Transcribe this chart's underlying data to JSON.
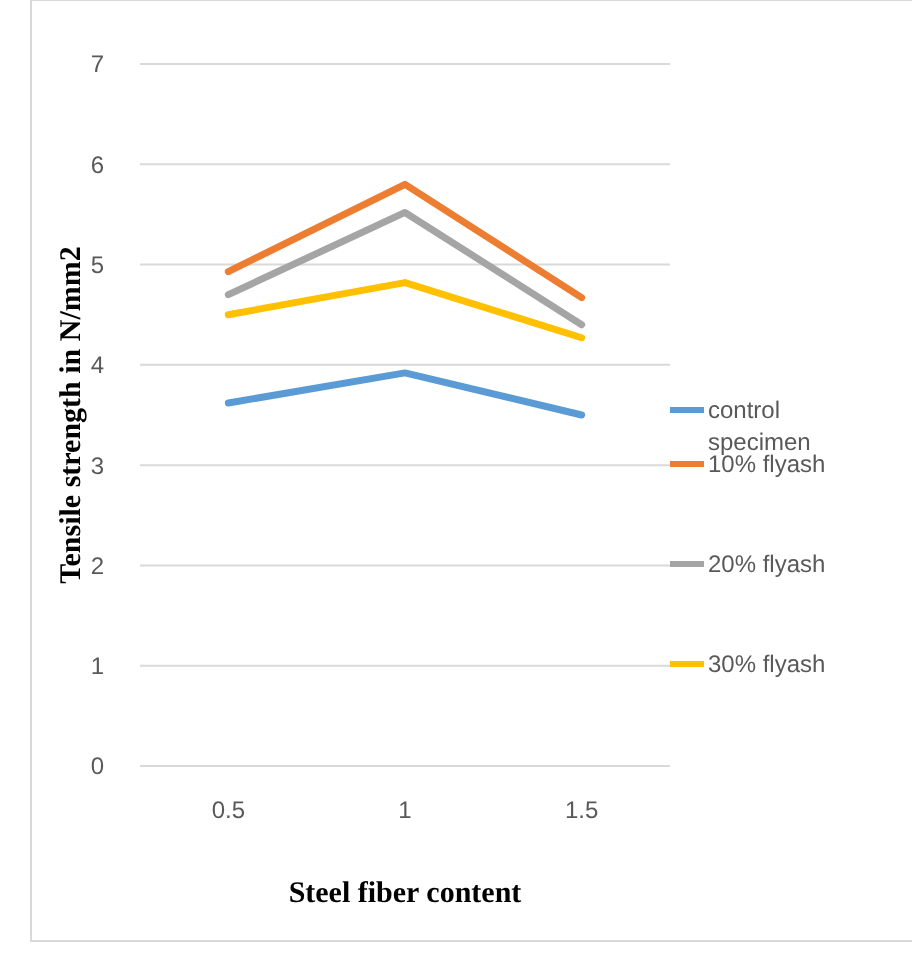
{
  "chart_data": {
    "type": "line",
    "xlabel": "Steel fiber content",
    "ylabel": "Tensile strength in N/mm2",
    "categories": [
      "0.5",
      "1",
      "1.5"
    ],
    "series": [
      {
        "name": "control specimen",
        "color": "#5b9bd5",
        "values": [
          3.62,
          3.92,
          3.5
        ]
      },
      {
        "name": "10% flyash",
        "color": "#ed7d31",
        "values": [
          4.93,
          5.8,
          4.67
        ]
      },
      {
        "name": "20% flyash",
        "color": "#a5a5a5",
        "values": [
          4.7,
          5.52,
          4.4
        ]
      },
      {
        "name": "30% flyash",
        "color": "#ffc000",
        "values": [
          4.5,
          4.82,
          4.27
        ]
      }
    ],
    "ylim": [
      0,
      7
    ],
    "yticks": [
      0,
      1,
      2,
      3,
      4,
      5,
      6,
      7
    ],
    "grid": "y",
    "legend": "right",
    "marker": "none",
    "line_style": "solid"
  }
}
